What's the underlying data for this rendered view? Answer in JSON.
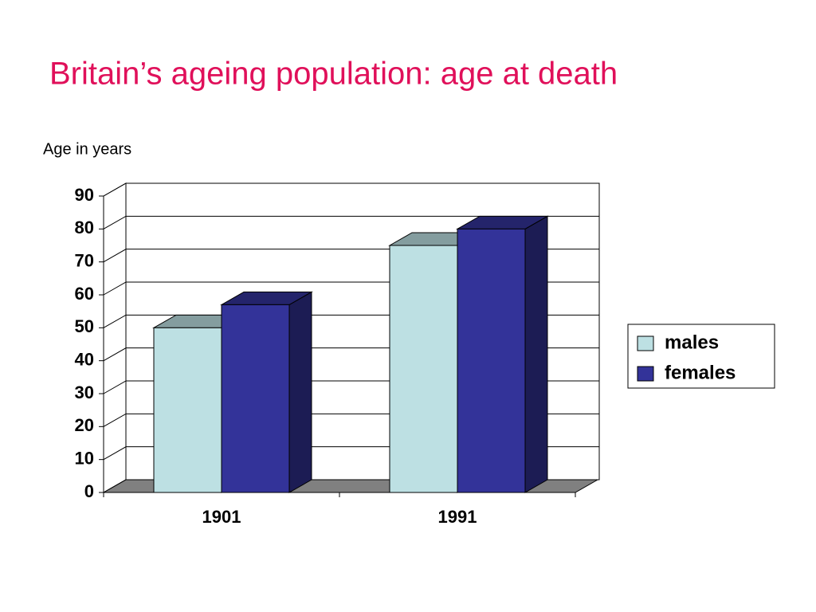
{
  "chart_data": {
    "type": "bar3d",
    "title": "Britain’s ageing population: age at death",
    "y_axis_label": "Age in years",
    "categories": [
      "1901",
      "1991"
    ],
    "series": [
      {
        "name": "males",
        "color": "#bde0e3",
        "values": [
          50,
          75
        ]
      },
      {
        "name": "females",
        "color": "#333399",
        "values": [
          57,
          80
        ]
      }
    ],
    "ylim": [
      0,
      90
    ],
    "yticks": [
      0,
      10,
      20,
      30,
      40,
      50,
      60,
      70,
      80,
      90
    ],
    "grid": true,
    "legend": "right"
  }
}
